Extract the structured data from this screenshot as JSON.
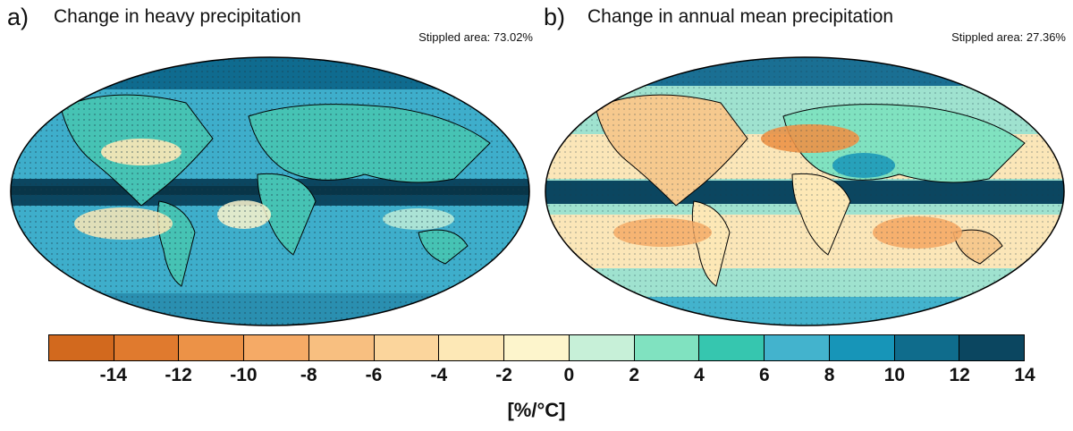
{
  "panels": [
    {
      "letter": "a)",
      "title": "Change in heavy precipitation",
      "stippled": "Stippled area: 73.02%",
      "ocean_color": "#3eaecb",
      "ocean_dark": "#2a8fb0",
      "land_color": "#46c3b4",
      "accent_color": "#0f6b8f"
    },
    {
      "letter": "b)",
      "title": "Change in annual mean precipitation",
      "stippled": "Stippled area: 27.36%",
      "ocean_color": "#9fe2cf",
      "ocean_dark": "#fbe6b8",
      "land_color": "#f6c98e",
      "accent_color": "#1a6f93"
    }
  ],
  "colorbar": {
    "colors": [
      "#d2691e",
      "#e07a2e",
      "#ec9247",
      "#f5aa66",
      "#f8bf80",
      "#fbd59c",
      "#fde8b6",
      "#fdf5cc",
      "#c7f0d8",
      "#80e2c0",
      "#36c6af",
      "#43b3cd",
      "#1795b8",
      "#0f6c8c",
      "#0b4660"
    ],
    "tick_labels": [
      "-14",
      "-12",
      "-10",
      "-8",
      "-6",
      "-4",
      "-2",
      "0",
      "2",
      "4",
      "6",
      "8",
      "10",
      "12",
      "14"
    ],
    "unit_label": "[%/°C]"
  }
}
